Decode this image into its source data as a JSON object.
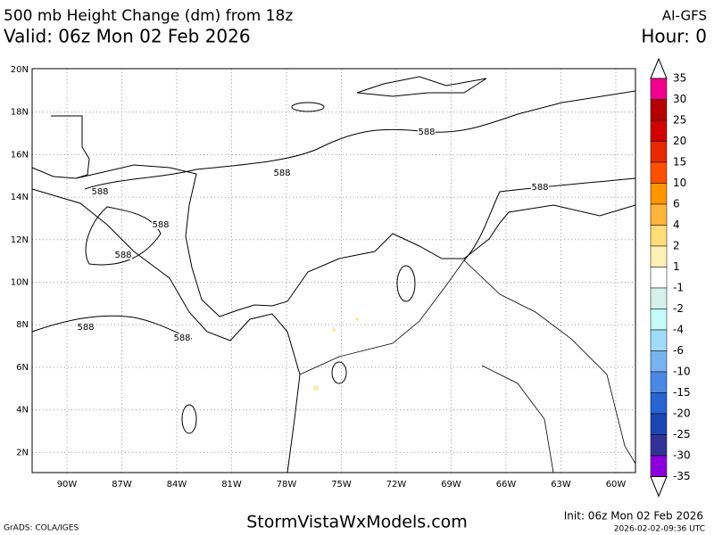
{
  "header": {
    "title": "500 mb Height Change (dm) from 18z",
    "model": "AI-GFS",
    "valid": "Valid: 06z Mon 02 Feb 2026",
    "hour": "Hour: 0"
  },
  "map": {
    "lat_labels": [
      "20N",
      "18N",
      "16N",
      "14N",
      "12N",
      "10N",
      "8N",
      "6N",
      "4N",
      "2N"
    ],
    "lon_labels": [
      "90W",
      "87W",
      "84W",
      "81W",
      "78W",
      "75W",
      "72W",
      "69W",
      "66W",
      "63W",
      "60W"
    ],
    "contour_labels": [
      "588",
      "588",
      "588",
      "588",
      "588",
      "588",
      "588",
      "588"
    ]
  },
  "colorbar": {
    "labels": [
      "35",
      "30",
      "25",
      "20",
      "15",
      "10",
      "6",
      "4",
      "2",
      "1",
      "-1",
      "-2",
      "-4",
      "-6",
      "-10",
      "-15",
      "-20",
      "-25",
      "-30",
      "-35"
    ],
    "colors": [
      "#f0008c",
      "#b40000",
      "#d20000",
      "#e82800",
      "#ff5000",
      "#ff9600",
      "#ffb43c",
      "#ffdc78",
      "#fff0b4",
      "#ffffff",
      "#d4f0e8",
      "#c4faf8",
      "#a0dcfa",
      "#78b4f0",
      "#4a88e4",
      "#2864d2",
      "#1c46b4",
      "#323296",
      "#8c00dc"
    ]
  },
  "footer": {
    "software": "GrADS: COLA/IGES",
    "site": "StormVistaWxModels.com",
    "init": "Init: 06z Mon 02 Feb 2026",
    "generated": "2026-02-02-09:36 UTC"
  }
}
